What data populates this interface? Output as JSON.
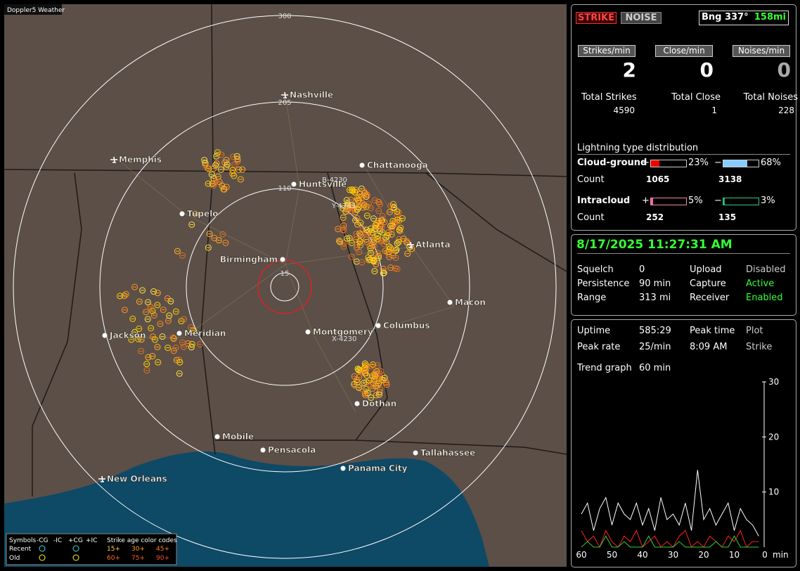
{
  "app_title": "Doppler5 Weather",
  "map": {
    "ring_labels": [
      "300",
      "205",
      "110",
      "15"
    ],
    "cities": [
      "Nashville",
      "Memphis",
      "Chattanooga",
      "Huntsville",
      "Tupelo",
      "Birmingham",
      "Atlanta",
      "Macon",
      "Jackson",
      "Meridian",
      "Montgomery",
      "Columbus",
      "Dothan",
      "Mobile",
      "Pensacola",
      "Tallahassee",
      "Panama City",
      "New Orleans"
    ],
    "track_labels": [
      "B-4230",
      "Y-4763",
      "X-4230"
    ]
  },
  "legend": {
    "symbols_title": "Symbols",
    "symbols": [
      "-CG",
      "-IC",
      "+CG",
      "+IC"
    ],
    "age_title": "Strike age color codes",
    "rows": [
      "Recent",
      "Old"
    ],
    "ages": [
      "15+",
      "30+",
      "45+",
      "60+",
      "75+",
      "90+"
    ]
  },
  "status": {
    "strike_button": "STRIKE",
    "noise_button": "NOISE",
    "bearing": "Bng 337°",
    "distance": "158mi"
  },
  "rates": {
    "labels": [
      "Strikes/min",
      "Close/min",
      "Noises/min"
    ],
    "values": [
      "2",
      "0",
      "0"
    ],
    "total_labels": [
      "Total Strikes",
      "Total Close",
      "Total Noises"
    ],
    "total_values": [
      "4590",
      "1",
      "228"
    ]
  },
  "distribution": {
    "title": "Lightning type distribution",
    "count_label": "Count",
    "rows": [
      {
        "name": "Cloud-ground",
        "parts": [
          {
            "sign": "+",
            "value": 23,
            "label": "23%",
            "count": "1065"
          },
          {
            "sign": "−",
            "value": 68,
            "label": "68%",
            "count": "3138"
          }
        ]
      },
      {
        "name": "Intracloud",
        "parts": [
          {
            "sign": "+",
            "value": 5,
            "label": "5%",
            "count": "252"
          },
          {
            "sign": "−",
            "value": 3,
            "label": "3%",
            "count": "135"
          }
        ]
      }
    ]
  },
  "clock": "8/17/2025 11:27:31 AM",
  "settings": [
    [
      "Squelch",
      "0",
      "Upload",
      "Disabled"
    ],
    [
      "Persistence",
      "90 min",
      "Capture",
      "Active"
    ],
    [
      "Range",
      "313 mi",
      "Receiver",
      "Enabled"
    ]
  ],
  "stats": [
    [
      "Uptime",
      "585:29",
      "Peak time",
      "Plot"
    ],
    [
      "Peak rate",
      "25/min",
      "8:09 AM",
      "Strike"
    ]
  ],
  "trend": {
    "label": "Trend graph",
    "window": "60 min",
    "x_unit": "min",
    "xlim": [
      60,
      0
    ],
    "ylim": [
      0,
      30
    ],
    "yticks": [
      30,
      20,
      10
    ],
    "xticks": [
      60,
      50,
      40,
      30,
      20,
      10,
      0
    ],
    "x": [
      60,
      58,
      56,
      54,
      52,
      50,
      48,
      46,
      44,
      42,
      40,
      38,
      36,
      34,
      32,
      30,
      28,
      26,
      24,
      22,
      20,
      18,
      16,
      14,
      12,
      10,
      8,
      6,
      4,
      2
    ],
    "series": [
      {
        "color": "#ffffff",
        "values": [
          6,
          8,
          3,
          7,
          9,
          4,
          8,
          6,
          5,
          8,
          4,
          7,
          3,
          9,
          5,
          6,
          4,
          8,
          3,
          14,
          5,
          7,
          4,
          6,
          8,
          3,
          7,
          5,
          4,
          2
        ]
      },
      {
        "color": "#ff2020",
        "values": [
          3,
          1,
          2,
          0,
          3,
          1,
          0,
          2,
          1,
          3,
          0,
          1,
          2,
          0,
          1,
          0,
          2,
          3,
          0,
          1,
          0,
          2,
          1,
          0,
          2,
          1,
          3,
          0,
          1,
          1
        ]
      },
      {
        "color": "#30d030",
        "values": [
          0,
          1,
          0,
          0,
          2,
          0,
          0,
          1,
          0,
          0,
          0,
          2,
          0,
          0,
          0,
          0,
          1,
          0,
          0,
          0,
          0,
          0,
          1,
          0,
          0,
          2,
          0,
          0,
          0,
          0
        ]
      }
    ]
  }
}
